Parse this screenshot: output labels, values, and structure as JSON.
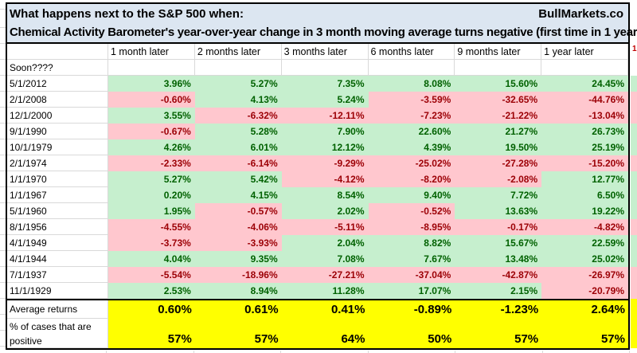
{
  "title": {
    "line1": "What happens next to the S&P 500 when:",
    "brand": "BullMarkets.co",
    "line2": "Chemical Activity Barometer's year-over-year change in 3 month moving average turns negative (first time in 1 year)"
  },
  "table": {
    "corner_label": "Soon????",
    "columns": [
      "1 month later",
      "2 months later",
      "3 months later",
      "6 months later",
      "9 months later",
      "1 year later"
    ],
    "rows": [
      {
        "date": "5/1/2012",
        "values": [
          "3.96%",
          "5.27%",
          "7.35%",
          "8.08%",
          "15.60%",
          "24.45%"
        ]
      },
      {
        "date": "2/1/2008",
        "values": [
          "-0.60%",
          "4.13%",
          "5.24%",
          "-3.59%",
          "-32.65%",
          "-44.76%"
        ]
      },
      {
        "date": "12/1/2000",
        "values": [
          "3.55%",
          "-6.32%",
          "-12.11%",
          "-7.23%",
          "-21.22%",
          "-13.04%"
        ]
      },
      {
        "date": "9/1/1990",
        "values": [
          "-0.67%",
          "5.28%",
          "7.90%",
          "22.60%",
          "21.27%",
          "26.73%"
        ]
      },
      {
        "date": "10/1/1979",
        "values": [
          "4.26%",
          "6.01%",
          "12.12%",
          "4.39%",
          "19.50%",
          "25.19%"
        ]
      },
      {
        "date": "2/1/1974",
        "values": [
          "-2.33%",
          "-6.14%",
          "-9.29%",
          "-25.02%",
          "-27.28%",
          "-15.20%"
        ]
      },
      {
        "date": "1/1/1970",
        "values": [
          "5.27%",
          "5.42%",
          "-4.12%",
          "-8.20%",
          "-2.08%",
          "12.77%"
        ]
      },
      {
        "date": "1/1/1967",
        "values": [
          "0.20%",
          "4.15%",
          "8.54%",
          "9.40%",
          "7.72%",
          "6.50%"
        ]
      },
      {
        "date": "5/1/1960",
        "values": [
          "1.95%",
          "-0.57%",
          "2.02%",
          "-0.52%",
          "13.63%",
          "19.22%"
        ]
      },
      {
        "date": "8/1/1956",
        "values": [
          "-4.55%",
          "-4.06%",
          "-5.11%",
          "-8.95%",
          "-0.17%",
          "-4.82%"
        ]
      },
      {
        "date": "4/1/1949",
        "values": [
          "-3.73%",
          "-3.93%",
          "2.04%",
          "8.82%",
          "15.67%",
          "22.59%"
        ]
      },
      {
        "date": "4/1/1944",
        "values": [
          "4.04%",
          "9.35%",
          "7.08%",
          "7.67%",
          "13.48%",
          "25.02%"
        ]
      },
      {
        "date": "7/1/1937",
        "values": [
          "-5.54%",
          "-18.96%",
          "-27.21%",
          "-37.04%",
          "-42.87%",
          "-26.97%"
        ]
      },
      {
        "date": "11/1/1929",
        "values": [
          "2.53%",
          "8.94%",
          "11.28%",
          "17.07%",
          "2.15%",
          "-20.79%"
        ]
      }
    ],
    "summary": {
      "avg_label": "Average returns",
      "avg_values": [
        "0.60%",
        "0.61%",
        "0.41%",
        "-0.89%",
        "-1.23%",
        "2.64%"
      ],
      "pct_label_line1": "% of cases that are",
      "pct_label_line2": "positive",
      "pct_values": [
        "57%",
        "57%",
        "64%",
        "50%",
        "57%",
        "57%"
      ]
    },
    "next_column_sliver": {
      "header_fragment": "1",
      "row_colors": [
        "g",
        "p",
        "p",
        "g",
        "g",
        "p",
        "g",
        "g",
        "g",
        "p",
        "g",
        "g",
        "p",
        "p"
      ]
    }
  },
  "colors": {
    "positive_bg": "#c6efce",
    "positive_text": "#006100",
    "negative_bg": "#ffc7ce",
    "negative_text": "#9c0006",
    "summary_bg": "#ffff00",
    "title_bg": "#dce6f1",
    "gridline": "#d9d9d9"
  }
}
